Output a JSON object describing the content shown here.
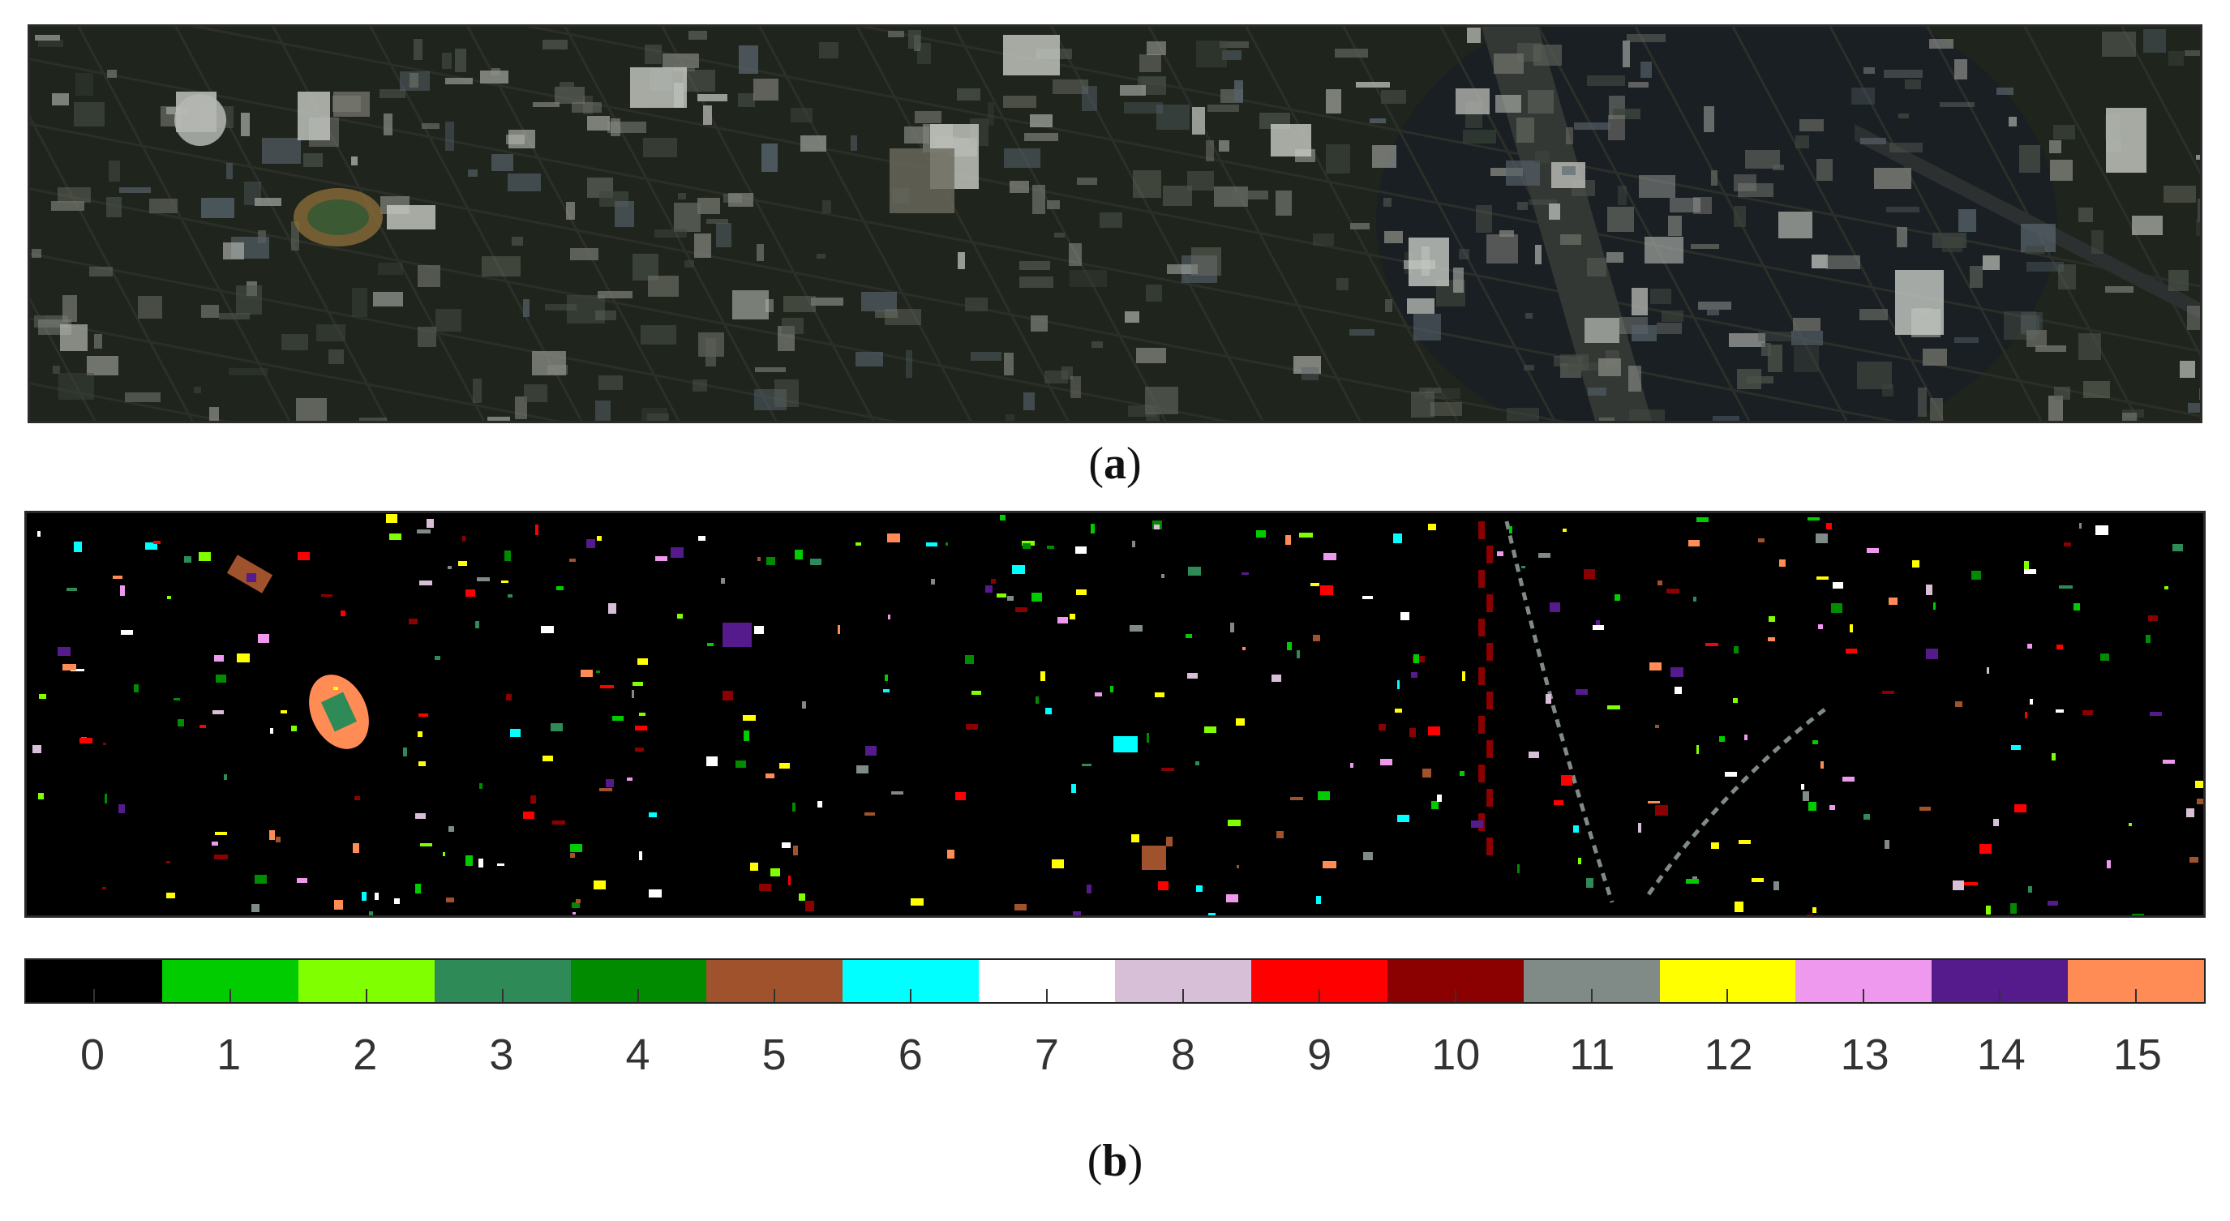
{
  "captions": {
    "a": "a",
    "b": "b"
  },
  "colorbar": {
    "classes": [
      {
        "label": "0",
        "color": "#000000"
      },
      {
        "label": "1",
        "color": "#00cc00"
      },
      {
        "label": "2",
        "color": "#7fff00"
      },
      {
        "label": "3",
        "color": "#2e8b57"
      },
      {
        "label": "4",
        "color": "#008b00"
      },
      {
        "label": "5",
        "color": "#a0522d"
      },
      {
        "label": "6",
        "color": "#00ffff"
      },
      {
        "label": "7",
        "color": "#ffffff"
      },
      {
        "label": "8",
        "color": "#d8bfd8"
      },
      {
        "label": "9",
        "color": "#ff0000"
      },
      {
        "label": "10",
        "color": "#8b0000"
      },
      {
        "label": "11",
        "color": "#808a87"
      },
      {
        "label": "12",
        "color": "#ffff00"
      },
      {
        "label": "13",
        "color": "#ee99ee"
      },
      {
        "label": "14",
        "color": "#551a8b"
      },
      {
        "label": "15",
        "color": "#ff8c55"
      }
    ]
  }
}
